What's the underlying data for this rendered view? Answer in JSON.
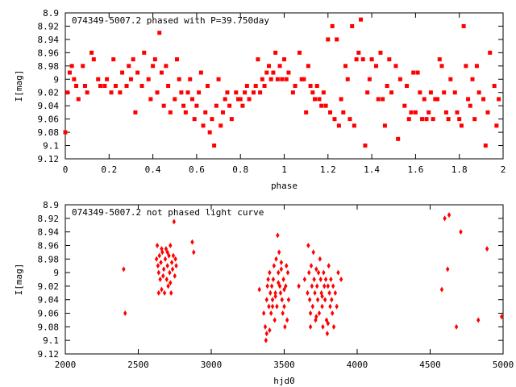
{
  "chart_data": [
    {
      "type": "scatter",
      "title": "074349-5007.2 phased with P=39.750day",
      "xlabel": "phase",
      "ylabel": "I[mag]",
      "xlim": [
        0,
        2
      ],
      "ylim": [
        9.12,
        8.9
      ],
      "y_inverted": true,
      "x_ticks": [
        "0",
        "0.2",
        "0.4",
        "0.6",
        "0.8",
        "1",
        "1.2",
        "1.4",
        "1.6",
        "1.8",
        "2"
      ],
      "y_ticks": [
        "8.9",
        "8.92",
        "8.94",
        "8.96",
        "8.98",
        "9",
        "9.02",
        "9.04",
        "9.06",
        "9.08",
        "9.1",
        "9.12"
      ],
      "grid": false,
      "marker": "filled-square",
      "color": "#ff0000",
      "points": [
        [
          0.0,
          9.08
        ],
        [
          0.01,
          9.02
        ],
        [
          0.02,
          8.99
        ],
        [
          0.03,
          8.98
        ],
        [
          0.04,
          9.0
        ],
        [
          0.05,
          9.01
        ],
        [
          0.06,
          9.03
        ],
        [
          0.08,
          8.98
        ],
        [
          0.09,
          9.01
        ],
        [
          0.1,
          9.02
        ],
        [
          0.12,
          8.96
        ],
        [
          0.13,
          8.97
        ],
        [
          0.15,
          9.0
        ],
        [
          0.16,
          9.01
        ],
        [
          0.18,
          9.01
        ],
        [
          0.19,
          9.0
        ],
        [
          0.21,
          9.02
        ],
        [
          0.22,
          8.97
        ],
        [
          0.23,
          9.01
        ],
        [
          0.25,
          9.02
        ],
        [
          0.26,
          8.99
        ],
        [
          0.28,
          9.01
        ],
        [
          0.29,
          8.98
        ],
        [
          0.3,
          9.0
        ],
        [
          0.31,
          8.97
        ],
        [
          0.32,
          9.05
        ],
        [
          0.33,
          8.99
        ],
        [
          0.35,
          9.01
        ],
        [
          0.36,
          8.96
        ],
        [
          0.38,
          9.0
        ],
        [
          0.39,
          9.03
        ],
        [
          0.4,
          8.98
        ],
        [
          0.41,
          8.97
        ],
        [
          0.42,
          9.02
        ],
        [
          0.43,
          8.93
        ],
        [
          0.44,
          8.99
        ],
        [
          0.45,
          9.04
        ],
        [
          0.46,
          8.98
        ],
        [
          0.47,
          9.01
        ],
        [
          0.48,
          9.05
        ],
        [
          0.5,
          9.03
        ],
        [
          0.51,
          8.97
        ],
        [
          0.52,
          9.0
        ],
        [
          0.53,
          9.02
        ],
        [
          0.54,
          9.04
        ],
        [
          0.55,
          9.05
        ],
        [
          0.56,
          9.02
        ],
        [
          0.57,
          9.0
        ],
        [
          0.58,
          9.03
        ],
        [
          0.59,
          9.06
        ],
        [
          0.6,
          9.04
        ],
        [
          0.61,
          9.02
        ],
        [
          0.62,
          8.99
        ],
        [
          0.63,
          9.07
        ],
        [
          0.64,
          9.05
        ],
        [
          0.65,
          9.01
        ],
        [
          0.66,
          9.08
        ],
        [
          0.67,
          9.06
        ],
        [
          0.68,
          9.1
        ],
        [
          0.69,
          9.04
        ],
        [
          0.7,
          9.0
        ],
        [
          0.71,
          9.07
        ],
        [
          0.72,
          9.05
        ],
        [
          0.73,
          9.03
        ],
        [
          0.74,
          9.02
        ],
        [
          0.75,
          9.04
        ],
        [
          0.76,
          9.06
        ],
        [
          0.78,
          9.02
        ],
        [
          0.79,
          9.03
        ],
        [
          0.8,
          9.03
        ],
        [
          0.81,
          9.04
        ],
        [
          0.82,
          9.02
        ],
        [
          0.83,
          9.01
        ],
        [
          0.84,
          9.03
        ],
        [
          0.86,
          9.02
        ],
        [
          0.87,
          9.01
        ],
        [
          0.88,
          8.97
        ],
        [
          0.89,
          9.02
        ],
        [
          0.9,
          9.0
        ],
        [
          0.91,
          9.01
        ],
        [
          0.92,
          8.99
        ],
        [
          0.93,
          8.98
        ],
        [
          0.94,
          9.0
        ],
        [
          0.95,
          8.99
        ],
        [
          0.96,
          8.96
        ],
        [
          0.97,
          9.0
        ],
        [
          0.98,
          8.98
        ],
        [
          0.99,
          9.0
        ],
        [
          1.0,
          8.97
        ],
        [
          1.01,
          9.0
        ],
        [
          1.02,
          8.99
        ],
        [
          1.04,
          9.02
        ],
        [
          1.05,
          9.01
        ],
        [
          1.07,
          8.96
        ],
        [
          1.08,
          9.0
        ],
        [
          1.09,
          9.0
        ],
        [
          1.1,
          9.05
        ],
        [
          1.11,
          8.98
        ],
        [
          1.12,
          9.01
        ],
        [
          1.13,
          9.02
        ],
        [
          1.14,
          9.03
        ],
        [
          1.15,
          9.01
        ],
        [
          1.16,
          9.03
        ],
        [
          1.17,
          9.04
        ],
        [
          1.18,
          9.02
        ],
        [
          1.19,
          9.04
        ],
        [
          1.2,
          8.94
        ],
        [
          1.21,
          9.05
        ],
        [
          1.22,
          8.92
        ],
        [
          1.23,
          9.06
        ],
        [
          1.24,
          8.94
        ],
        [
          1.25,
          9.07
        ],
        [
          1.26,
          9.03
        ],
        [
          1.27,
          9.05
        ],
        [
          1.28,
          8.98
        ],
        [
          1.29,
          9.0
        ],
        [
          1.3,
          9.06
        ],
        [
          1.31,
          8.92
        ],
        [
          1.32,
          9.07
        ],
        [
          1.33,
          8.97
        ],
        [
          1.34,
          8.96
        ],
        [
          1.35,
          8.91
        ],
        [
          1.36,
          8.97
        ],
        [
          1.37,
          9.1
        ],
        [
          1.38,
          9.02
        ],
        [
          1.39,
          9.0
        ],
        [
          1.4,
          8.97
        ],
        [
          1.42,
          8.98
        ],
        [
          1.43,
          9.03
        ],
        [
          1.44,
          8.96
        ],
        [
          1.45,
          9.03
        ],
        [
          1.46,
          9.07
        ],
        [
          1.47,
          9.01
        ],
        [
          1.48,
          8.97
        ],
        [
          1.49,
          9.02
        ],
        [
          1.51,
          8.98
        ],
        [
          1.52,
          9.09
        ],
        [
          1.53,
          9.0
        ],
        [
          1.55,
          9.04
        ],
        [
          1.56,
          9.01
        ],
        [
          1.57,
          9.06
        ],
        [
          1.58,
          9.05
        ],
        [
          1.59,
          8.99
        ],
        [
          1.6,
          9.05
        ],
        [
          1.61,
          8.99
        ],
        [
          1.62,
          9.02
        ],
        [
          1.63,
          9.06
        ],
        [
          1.64,
          9.03
        ],
        [
          1.65,
          9.06
        ],
        [
          1.66,
          9.05
        ],
        [
          1.67,
          9.02
        ],
        [
          1.68,
          9.06
        ],
        [
          1.69,
          9.03
        ],
        [
          1.7,
          9.03
        ],
        [
          1.71,
          8.97
        ],
        [
          1.72,
          8.98
        ],
        [
          1.73,
          9.02
        ],
        [
          1.74,
          9.05
        ],
        [
          1.75,
          9.06
        ],
        [
          1.76,
          9.0
        ],
        [
          1.78,
          9.02
        ],
        [
          1.79,
          9.05
        ],
        [
          1.8,
          9.06
        ],
        [
          1.81,
          9.07
        ],
        [
          1.82,
          8.92
        ],
        [
          1.83,
          8.98
        ],
        [
          1.84,
          9.03
        ],
        [
          1.85,
          9.04
        ],
        [
          1.86,
          9.0
        ],
        [
          1.87,
          9.06
        ],
        [
          1.88,
          8.98
        ],
        [
          1.89,
          9.02
        ],
        [
          1.91,
          9.03
        ],
        [
          1.92,
          9.1
        ],
        [
          1.93,
          9.05
        ],
        [
          1.94,
          8.96
        ],
        [
          1.96,
          9.01
        ],
        [
          1.97,
          9.07
        ],
        [
          1.98,
          9.03
        ]
      ]
    },
    {
      "type": "scatter",
      "title": "074349-5007.2 not phased light curve",
      "xlabel": "hjd0",
      "ylabel": "I[mag]",
      "xlim": [
        2000,
        5000
      ],
      "ylim": [
        9.12,
        8.9
      ],
      "y_inverted": true,
      "x_ticks": [
        "2000",
        "2500",
        "3000",
        "3500",
        "4000",
        "4500",
        "5000"
      ],
      "y_ticks": [
        "8.9",
        "8.92",
        "8.94",
        "8.96",
        "8.98",
        "9",
        "9.02",
        "9.04",
        "9.06",
        "9.08",
        "9.1",
        "9.12"
      ],
      "grid": false,
      "marker": "filled-diamond",
      "color": "#ff0000",
      "points": [
        [
          2400,
          8.995
        ],
        [
          2410,
          9.06
        ],
        [
          2625,
          8.98
        ],
        [
          2630,
          8.96
        ],
        [
          2635,
          8.99
        ],
        [
          2640,
          9.0
        ],
        [
          2645,
          8.975
        ],
        [
          2650,
          9.01
        ],
        [
          2655,
          8.985
        ],
        [
          2660,
          9.025
        ],
        [
          2665,
          8.97
        ],
        [
          2670,
          9.005
        ],
        [
          2675,
          8.995
        ],
        [
          2680,
          9.03
        ],
        [
          2685,
          8.98
        ],
        [
          2690,
          8.965
        ],
        [
          2695,
          9.01
        ],
        [
          2700,
          8.99
        ],
        [
          2705,
          9.02
        ],
        [
          2710,
          8.975
        ],
        [
          2715,
          9.0
        ],
        [
          2720,
          8.96
        ],
        [
          2725,
          9.03
        ],
        [
          2730,
          8.985
        ],
        [
          2735,
          8.995
        ],
        [
          2740,
          8.975
        ],
        [
          2745,
          8.925
        ],
        [
          2750,
          9.005
        ],
        [
          2755,
          8.98
        ],
        [
          2760,
          8.99
        ],
        [
          2640,
          9.03
        ],
        [
          2660,
          8.965
        ],
        [
          2700,
          8.97
        ],
        [
          2720,
          9.015
        ],
        [
          2870,
          8.955
        ],
        [
          2880,
          8.97
        ],
        [
          3330,
          9.025
        ],
        [
          3360,
          9.06
        ],
        [
          3370,
          9.08
        ],
        [
          3375,
          9.1
        ],
        [
          3380,
          9.04
        ],
        [
          3385,
          9.02
        ],
        [
          3390,
          9.01
        ],
        [
          3395,
          9.05
        ],
        [
          3400,
          9.0
        ],
        [
          3405,
          9.03
        ],
        [
          3410,
          9.06
        ],
        [
          3415,
          9.02
        ],
        [
          3420,
          9.04
        ],
        [
          3425,
          9.01
        ],
        [
          3430,
          8.99
        ],
        [
          3435,
          9.07
        ],
        [
          3440,
          9.03
        ],
        [
          3445,
          8.98
        ],
        [
          3450,
          9.05
        ],
        [
          3455,
          8.945
        ],
        [
          3460,
          9.0
        ],
        [
          3465,
          8.97
        ],
        [
          3470,
          9.02
        ],
        [
          3475,
          9.03
        ],
        [
          3480,
          8.995
        ],
        [
          3485,
          9.04
        ],
        [
          3490,
          9.06
        ],
        [
          3495,
          9.01
        ],
        [
          3500,
          9.05
        ],
        [
          3505,
          9.08
        ],
        [
          3510,
          9.02
        ],
        [
          3515,
          8.99
        ],
        [
          3520,
          9.07
        ],
        [
          3525,
          9.0
        ],
        [
          3530,
          9.04
        ],
        [
          3380,
          9.09
        ],
        [
          3400,
          9.085
        ],
        [
          3420,
          9.05
        ],
        [
          3440,
          9.035
        ],
        [
          3460,
          9.015
        ],
        [
          3480,
          8.985
        ],
        [
          3500,
          9.025
        ],
        [
          3600,
          9.02
        ],
        [
          3640,
          9.01
        ],
        [
          3660,
          9.03
        ],
        [
          3665,
          8.96
        ],
        [
          3670,
          9.0
        ],
        [
          3675,
          9.04
        ],
        [
          3680,
          9.06
        ],
        [
          3685,
          8.99
        ],
        [
          3690,
          9.02
        ],
        [
          3695,
          9.05
        ],
        [
          3700,
          8.97
        ],
        [
          3705,
          9.01
        ],
        [
          3710,
          9.03
        ],
        [
          3715,
          9.07
        ],
        [
          3720,
          8.995
        ],
        [
          3725,
          9.02
        ],
        [
          3730,
          9.04
        ],
        [
          3735,
          9.0
        ],
        [
          3740,
          9.06
        ],
        [
          3745,
          8.98
        ],
        [
          3750,
          9.01
        ],
        [
          3755,
          9.03
        ],
        [
          3760,
          9.05
        ],
        [
          3765,
          9.08
        ],
        [
          3770,
          9.0
        ],
        [
          3775,
          9.02
        ],
        [
          3780,
          9.04
        ],
        [
          3785,
          9.01
        ],
        [
          3790,
          9.07
        ],
        [
          3795,
          9.09
        ],
        [
          3800,
          9.02
        ],
        [
          3805,
          8.99
        ],
        [
          3810,
          9.03
        ],
        [
          3815,
          9.05
        ],
        [
          3820,
          9.01
        ],
        [
          3825,
          9.04
        ],
        [
          3830,
          9.06
        ],
        [
          3835,
          9.02
        ],
        [
          3840,
          9.08
        ],
        [
          3850,
          9.03
        ],
        [
          3860,
          9.05
        ],
        [
          3870,
          9.0
        ],
        [
          3890,
          9.01
        ],
        [
          3680,
          9.08
        ],
        [
          3720,
          9.065
        ],
        [
          3760,
          9.035
        ],
        [
          3800,
          9.075
        ],
        [
          4580,
          9.025
        ],
        [
          4600,
          8.92
        ],
        [
          4620,
          8.995
        ],
        [
          4630,
          8.915
        ],
        [
          4680,
          9.08
        ],
        [
          4710,
          8.94
        ],
        [
          4830,
          9.07
        ],
        [
          4890,
          8.965
        ],
        [
          4990,
          9.065
        ]
      ]
    }
  ]
}
